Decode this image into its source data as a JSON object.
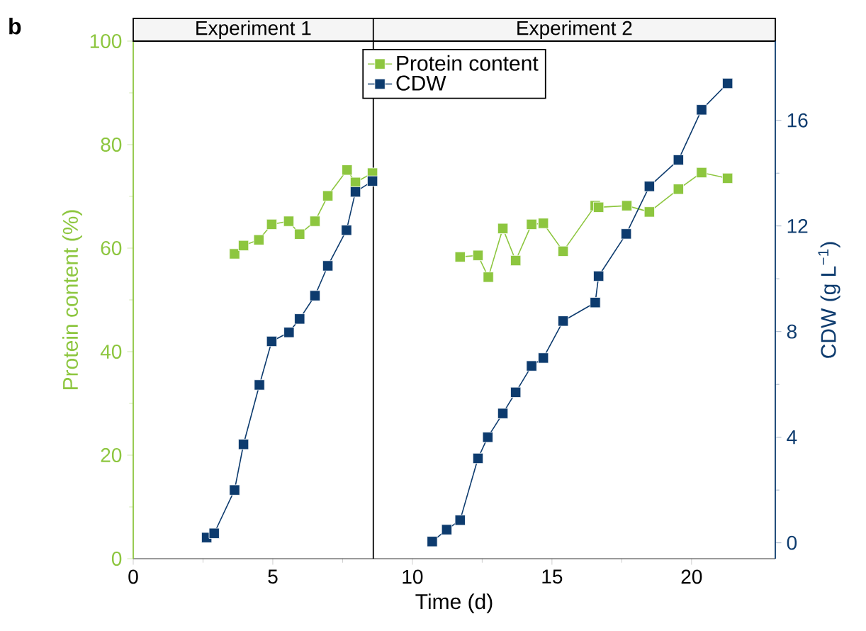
{
  "chart_data": {
    "type": "line",
    "title": "b",
    "xlabel": "Time (d)",
    "ylabel": "Protein content (%)",
    "y2label": "CDW (g L$^{−1}$)",
    "annotations": [
      "Experiment 1",
      "Experiment 2"
    ],
    "xlim": [
      0,
      23
    ],
    "xticks": [
      0,
      5,
      10,
      15,
      20
    ],
    "ylim": [
      0,
      100
    ],
    "yticks": [
      0,
      20,
      40,
      60,
      80,
      100
    ],
    "y2lim": [
      -0.6,
      19
    ],
    "y2ticks": [
      0,
      4,
      8,
      12,
      16
    ],
    "marker": "square",
    "line_style": "solid",
    "legend": "top",
    "grid": false,
    "ref_lines": [
      {
        "axis": "x",
        "value": 8.6,
        "color": "#000000",
        "line_style": "solid"
      }
    ],
    "series": [
      {
        "name": "Protein content",
        "color": "#8dc63f",
        "x": [
          3.63,
          3.95,
          4.5,
          4.96,
          5.57,
          5.96,
          6.51,
          6.97,
          7.66,
          7.96,
          8.57,
          9.6,
          11.71,
          12.35,
          12.72,
          13.24,
          13.7,
          14.27,
          14.69,
          15.4,
          16.55,
          16.67,
          17.68,
          18.49,
          19.53,
          20.36,
          21.29
        ],
        "values": [
          58.9,
          60.5,
          61.6,
          64.6,
          65.2,
          62.7,
          65.2,
          70.1,
          75.1,
          72.7,
          74.5,
          null,
          58.3,
          58.6,
          54.4,
          63.8,
          57.6,
          64.6,
          64.8,
          59.4,
          68.2,
          67.9,
          68.2,
          67.0,
          71.4,
          74.6,
          73.5
        ]
      },
      {
        "name": "CDW",
        "color": "#0d3b6e",
        "axis": "y2",
        "x": [
          2.63,
          2.9,
          3.63,
          3.95,
          4.52,
          4.96,
          5.58,
          5.96,
          6.51,
          6.97,
          7.64,
          7.96,
          8.57,
          9.6,
          10.71,
          11.23,
          11.71,
          12.35,
          12.7,
          13.24,
          13.7,
          14.27,
          14.69,
          15.4,
          16.55,
          16.67,
          17.66,
          18.49,
          19.53,
          20.36,
          21.29
        ],
        "values": [
          0.2,
          0.36,
          2.0,
          3.73,
          5.98,
          7.63,
          7.97,
          8.48,
          9.36,
          10.49,
          11.84,
          13.29,
          13.7,
          null,
          0.05,
          0.5,
          0.86,
          3.2,
          4.0,
          4.9,
          5.7,
          6.7,
          7.0,
          8.4,
          9.1,
          10.1,
          11.7,
          13.5,
          14.5,
          16.4,
          17.4
        ]
      }
    ]
  }
}
